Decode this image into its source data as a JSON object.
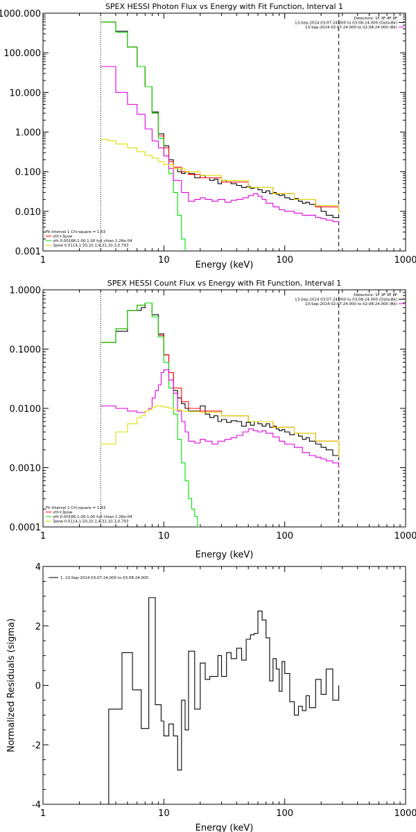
{
  "chart_data": [
    {
      "type": "line",
      "title": "SPEX HESSI Photon Flux vs Energy with Fit Function, Interval 1",
      "xlabel": "Energy (keV)",
      "ylabel": "",
      "xscale": "log",
      "yscale": "log",
      "xlim": [
        1,
        1000
      ],
      "ylim": [
        0.001,
        1000
      ],
      "x_ticks": [
        1,
        10,
        100,
        1000
      ],
      "x_tick_labels": [
        "1",
        "10",
        "100",
        "1000"
      ],
      "y_ticks": [
        0.001,
        0.01,
        0.1,
        1,
        10,
        100,
        1000
      ],
      "y_tick_labels": [
        "0.001",
        "0.010",
        "0.100",
        "1.000",
        "10.000",
        "100.000",
        "1000.000"
      ],
      "grid": false,
      "legend_top_right": [
        "Detectors: 1F 3F 4F 8F",
        "13-Sep-2014 03:07:24.000 to 03:08:24.000 (Data-Bk)",
        "13-Sep-2014 02:07:24.000 to 02:08:24.000 (Bk)"
      ],
      "legend_bottom_left": [
        "Fit Interval 1   Chi-square = 1.63",
        "vth+3pow",
        "vth 0.00166,1.00,1.00  full chian 1.26e-04",
        "3pow 0.0114,1.50,10.1,4.31,10.3,0.793"
      ],
      "vlines": [
        3,
        280
      ],
      "series": [
        {
          "color": "#000000",
          "x": [
            3,
            3.5,
            4,
            4.5,
            5,
            5.5,
            6,
            6.5,
            7,
            7.5,
            8,
            8.5,
            9,
            9.5,
            10,
            11,
            12,
            13,
            14,
            15,
            16,
            18,
            20,
            22,
            24,
            26,
            28,
            30,
            33,
            36,
            40,
            44,
            48,
            52,
            56,
            60,
            65,
            70,
            75,
            80,
            85,
            90,
            95,
            100,
            110,
            120,
            130,
            140,
            150,
            160,
            180,
            200,
            220,
            250,
            280
          ],
          "y": [
            600,
            600,
            350,
            350,
            140,
            140,
            45,
            45,
            14,
            14,
            3.2,
            3.2,
            0.9,
            0.9,
            0.45,
            0.2,
            0.12,
            0.1,
            0.09,
            0.1,
            0.09,
            0.07,
            0.08,
            0.07,
            0.06,
            0.065,
            0.05,
            0.06,
            0.055,
            0.05,
            0.045,
            0.04,
            0.042,
            0.038,
            0.04,
            0.035,
            0.03,
            0.033,
            0.028,
            0.03,
            0.027,
            0.025,
            0.026,
            0.022,
            0.02,
            0.021,
            0.018,
            0.016,
            0.017,
            0.015,
            0.013,
            0.01,
            0.008,
            0.007,
            0.007
          ]
        },
        {
          "color": "#ff0000",
          "x": [
            3,
            3.5,
            4,
            4.5,
            5,
            5.5,
            6,
            6.5,
            7,
            7.5,
            8,
            8.5,
            9,
            9.5,
            10,
            11,
            12,
            14,
            16,
            20,
            30,
            50,
            80,
            120,
            180,
            280
          ],
          "y": [
            600,
            600,
            330,
            330,
            140,
            140,
            45,
            45,
            14,
            14,
            3.0,
            3.0,
            0.8,
            0.8,
            0.4,
            0.18,
            0.13,
            0.1,
            0.085,
            0.07,
            0.055,
            0.04,
            0.028,
            0.02,
            0.013,
            0.009
          ]
        },
        {
          "color": "#00dd00",
          "x": [
            3,
            3.5,
            4,
            4.5,
            5,
            5.5,
            6,
            6.5,
            7,
            7.5,
            8,
            8.5,
            9,
            9.5,
            10,
            11,
            12,
            13,
            14,
            15
          ],
          "y": [
            600,
            600,
            330,
            330,
            140,
            140,
            45,
            45,
            14,
            14,
            3.0,
            3.0,
            0.7,
            0.7,
            0.25,
            0.09,
            0.03,
            0.008,
            0.002,
            0.001
          ]
        },
        {
          "color": "#dd00dd",
          "x": [
            3,
            3.5,
            4,
            4.5,
            5,
            5.5,
            6,
            6.5,
            7,
            7.5,
            8,
            8.5,
            9,
            9.5,
            10,
            11,
            12,
            14,
            16,
            18,
            20,
            22,
            25,
            28,
            32,
            36,
            40,
            45,
            50,
            55,
            60,
            65,
            70,
            80,
            90,
            100,
            120,
            140,
            160,
            180,
            200,
            220,
            250,
            280
          ],
          "y": [
            45,
            45,
            10,
            10,
            5,
            5,
            2.8,
            2.8,
            1.2,
            1.2,
            0.6,
            0.6,
            0.4,
            0.4,
            0.25,
            0.12,
            0.06,
            0.03,
            0.018,
            0.02,
            0.022,
            0.02,
            0.018,
            0.02,
            0.017,
            0.019,
            0.02,
            0.022,
            0.025,
            0.028,
            0.024,
            0.02,
            0.016,
            0.013,
            0.011,
            0.01,
            0.009,
            0.008,
            0.008,
            0.007,
            0.0065,
            0.006,
            0.0055,
            0.005
          ]
        },
        {
          "color": "#dddd00",
          "x": [
            3,
            3.5,
            4,
            5,
            6,
            7,
            8,
            9,
            10,
            12,
            15,
            20,
            30,
            50,
            80,
            120,
            180,
            280
          ],
          "y": [
            0.65,
            0.6,
            0.5,
            0.4,
            0.32,
            0.26,
            0.22,
            0.18,
            0.15,
            0.12,
            0.1,
            0.08,
            0.06,
            0.04,
            0.028,
            0.02,
            0.014,
            0.009
          ]
        }
      ]
    },
    {
      "type": "line",
      "title": "SPEX HESSI Count Flux vs Energy with Fit Function, Interval 1",
      "xlabel": "Energy (keV)",
      "ylabel": "",
      "xscale": "log",
      "yscale": "log",
      "xlim": [
        1,
        1000
      ],
      "ylim": [
        0.0001,
        1
      ],
      "x_ticks": [
        1,
        10,
        100,
        1000
      ],
      "x_tick_labels": [
        "1",
        "10",
        "100",
        "1000"
      ],
      "y_ticks": [
        0.0001,
        0.001,
        0.01,
        0.1,
        1
      ],
      "y_tick_labels": [
        "0.0001",
        "0.0010",
        "0.0100",
        "0.1000",
        "1.0000"
      ],
      "grid": false,
      "legend_top_right": [
        "Detectors: 1F 3F 4F 8F",
        "13-Sep-2014 03:07:24.000 to 03:08:24.000 (Data-Bk)",
        "13-Sep-2014 02:07:24.000 to 02:08:24.000 (Bk)"
      ],
      "legend_bottom_left": [
        "Fit Interval 1   Chi-square = 1.63",
        "vth+3pow",
        "vth 0.00166,1.00,1.00  full chian 1.26e-04",
        "3pow 0.0114,1.50,10.1,4.31,10.3,0.793"
      ],
      "vlines": [
        3,
        280
      ],
      "series": [
        {
          "color": "#000000",
          "x": [
            3,
            3.5,
            4,
            4.5,
            5,
            5.5,
            6,
            6.5,
            7,
            7.5,
            8,
            8.5,
            9,
            9.5,
            10,
            11,
            12,
            13,
            14,
            15,
            16,
            18,
            20,
            22,
            24,
            26,
            28,
            30,
            33,
            36,
            40,
            44,
            48,
            52,
            56,
            60,
            65,
            70,
            75,
            80,
            85,
            90,
            95,
            100,
            110,
            120,
            130,
            140,
            150,
            160,
            180,
            200,
            220,
            250,
            280
          ],
          "y": [
            0.13,
            0.13,
            0.2,
            0.2,
            0.45,
            0.45,
            0.45,
            0.5,
            0.6,
            0.6,
            0.38,
            0.38,
            0.18,
            0.18,
            0.08,
            0.04,
            0.02,
            0.015,
            0.012,
            0.01,
            0.009,
            0.009,
            0.011,
            0.008,
            0.007,
            0.0075,
            0.006,
            0.0065,
            0.0058,
            0.0062,
            0.006,
            0.005,
            0.0058,
            0.0052,
            0.006,
            0.0055,
            0.005,
            0.0055,
            0.0048,
            0.005,
            0.0045,
            0.0042,
            0.0044,
            0.004,
            0.0036,
            0.0038,
            0.0034,
            0.003,
            0.0032,
            0.0028,
            0.0025,
            0.0022,
            0.002,
            0.0016,
            0.0016
          ]
        },
        {
          "color": "#ff0000",
          "x": [
            3,
            3.5,
            4,
            4.5,
            5,
            5.5,
            6,
            6.5,
            7,
            7.5,
            8,
            8.5,
            9,
            9.5,
            10,
            11,
            12,
            14,
            16,
            20,
            30,
            50,
            80,
            120,
            180,
            280
          ],
          "y": [
            0.13,
            0.13,
            0.22,
            0.22,
            0.45,
            0.45,
            0.55,
            0.55,
            0.6,
            0.6,
            0.35,
            0.35,
            0.17,
            0.17,
            0.08,
            0.04,
            0.022,
            0.013,
            0.01,
            0.009,
            0.0075,
            0.006,
            0.0048,
            0.0038,
            0.0028,
            0.0015
          ]
        },
        {
          "color": "#00dd00",
          "x": [
            3,
            3.5,
            4,
            4.5,
            5,
            5.5,
            6,
            6.5,
            7,
            7.5,
            8,
            8.5,
            9,
            9.5,
            10,
            11,
            12,
            13,
            14,
            15,
            16,
            17,
            18,
            19,
            20
          ],
          "y": [
            0.13,
            0.13,
            0.22,
            0.22,
            0.45,
            0.45,
            0.55,
            0.55,
            0.6,
            0.6,
            0.35,
            0.35,
            0.16,
            0.16,
            0.06,
            0.022,
            0.008,
            0.003,
            0.0012,
            0.0006,
            0.0003,
            0.0002,
            0.00015,
            0.0001,
            0.0001
          ]
        },
        {
          "color": "#dd00dd",
          "x": [
            3,
            3.5,
            4,
            4.5,
            5,
            5.5,
            6,
            6.5,
            7,
            7.5,
            8,
            8.5,
            9,
            9.5,
            10,
            11,
            12,
            13,
            14,
            15,
            16,
            18,
            20,
            22,
            25,
            28,
            32,
            36,
            40,
            45,
            50,
            55,
            60,
            65,
            70,
            80,
            90,
            100,
            120,
            140,
            160,
            180,
            200,
            220,
            250,
            280
          ],
          "y": [
            0.011,
            0.011,
            0.01,
            0.01,
            0.009,
            0.009,
            0.0085,
            0.0085,
            0.009,
            0.01,
            0.015,
            0.02,
            0.025,
            0.04,
            0.045,
            0.03,
            0.018,
            0.009,
            0.006,
            0.004,
            0.0028,
            0.0026,
            0.003,
            0.0028,
            0.0025,
            0.0028,
            0.003,
            0.0032,
            0.0035,
            0.004,
            0.0045,
            0.0042,
            0.004,
            0.0042,
            0.0038,
            0.0033,
            0.0028,
            0.0025,
            0.0022,
            0.0018,
            0.0016,
            0.0015,
            0.0014,
            0.0013,
            0.0012,
            0.001
          ]
        },
        {
          "color": "#dddd00",
          "x": [
            3,
            3.5,
            4,
            4.5,
            5,
            5.5,
            6,
            6.5,
            7,
            7.5,
            8,
            8.5,
            9,
            9.5,
            10,
            11,
            12,
            14,
            16,
            20,
            30,
            50,
            80,
            120,
            180,
            280
          ],
          "y": [
            0.0025,
            0.0025,
            0.004,
            0.004,
            0.0055,
            0.0055,
            0.007,
            0.0075,
            0.009,
            0.0095,
            0.0105,
            0.011,
            0.011,
            0.0108,
            0.0105,
            0.01,
            0.0095,
            0.009,
            0.0088,
            0.0085,
            0.0075,
            0.006,
            0.0048,
            0.0038,
            0.0028,
            0.0015
          ]
        }
      ]
    },
    {
      "type": "line",
      "title": "",
      "xlabel": "Energy (keV)",
      "ylabel": "Normalized Residuals (sigma)",
      "xscale": "log",
      "yscale": "linear",
      "xlim": [
        1,
        1000
      ],
      "ylim": [
        -4,
        4
      ],
      "x_ticks": [
        1,
        10,
        100,
        1000
      ],
      "x_tick_labels": [
        "1",
        "10",
        "100",
        "1000"
      ],
      "y_ticks": [
        -4,
        -2,
        0,
        2,
        4
      ],
      "y_tick_labels": [
        "-4",
        "-2",
        "0",
        "2",
        "4"
      ],
      "grid": false,
      "legend_top_left": [
        "1. 13-Sep-2014 03:07:24.000 to 03:08:24.000"
      ],
      "vlines": [],
      "series": [
        {
          "color": "#000000",
          "x": [
            3,
            3.5,
            4,
            4.5,
            5,
            5.5,
            6,
            6.5,
            7,
            7.5,
            8,
            8.5,
            9,
            9.5,
            10,
            11,
            12,
            13,
            14,
            15,
            16,
            18,
            20,
            22,
            24,
            26,
            28,
            30,
            33,
            36,
            40,
            44,
            48,
            52,
            56,
            60,
            65,
            70,
            75,
            80,
            85,
            90,
            95,
            100,
            110,
            120,
            130,
            140,
            150,
            160,
            180,
            200,
            220,
            250,
            280
          ],
          "y": [
            -4,
            -0.8,
            -0.8,
            1.1,
            1.1,
            -0.15,
            -0.15,
            -1.45,
            -1.45,
            2.95,
            2.95,
            -0.65,
            -0.65,
            -1.2,
            -1.7,
            -1.3,
            -1.7,
            -2.85,
            -0.5,
            -1.5,
            1.15,
            -0.8,
            0.75,
            0.2,
            0.3,
            0.3,
            1.0,
            0.3,
            1.1,
            0.9,
            1.25,
            0.85,
            1.55,
            1.7,
            1.75,
            2.5,
            2.2,
            1.6,
            0.15,
            0.9,
            0.55,
            -0.2,
            0.8,
            0.4,
            -0.55,
            -1.0,
            -0.7,
            -0.85,
            -0.35,
            -0.75,
            0.2,
            -0.3,
            0.55,
            -0.5,
            0.0
          ]
        }
      ]
    }
  ]
}
